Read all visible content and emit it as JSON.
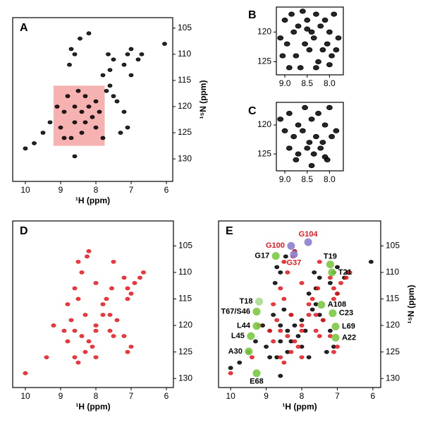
{
  "chart_data": [
    {
      "type": "scatter",
      "panel_label": "A",
      "xlabel": "¹H (ppm)",
      "ylabel": "¹⁵N (ppm)",
      "yaxis_side": "right",
      "xlim": [
        10.36,
        5.82
      ],
      "ylim": [
        103,
        134.3
      ],
      "xticks": [
        10,
        9,
        8,
        7,
        6
      ],
      "yticks": [
        105,
        110,
        115,
        120,
        125,
        130
      ],
      "highlight": {
        "xlim": [
          9.2,
          7.75
        ],
        "ylim": [
          116,
          127.5
        ],
        "color": "#f4a3a3"
      },
      "series": [
        {
          "color": "#000000",
          "x": [
            6.05,
            6.7,
            6.8,
            7.0,
            7.1,
            7.6,
            7.5,
            7.65,
            7.8,
            7.2,
            8.2,
            8.7,
            8.6,
            7.0,
            7.5,
            7.4,
            7.6,
            9.75,
            10.0,
            9.5,
            9.3,
            9.0,
            8.8,
            8.5,
            8.3,
            8.6,
            8.4,
            8.2,
            8.0,
            8.1,
            8.3,
            7.9,
            8.6,
            8.0,
            8.4,
            8.9,
            8.6,
            8.7,
            7.8,
            9.1,
            8.9,
            7.3,
            7.1,
            7.2,
            7.7,
            8.75,
            8.45
          ],
          "y": [
            108,
            110,
            111,
            109,
            110,
            113,
            111,
            110,
            114,
            112,
            106,
            109,
            110,
            114,
            118,
            119,
            116,
            127,
            128,
            125,
            123,
            124,
            118,
            117,
            118,
            120,
            121,
            120,
            119,
            122,
            123,
            121,
            123,
            124,
            125,
            126,
            129.5,
            126,
            126,
            120,
            121,
            125,
            124,
            121,
            117,
            112,
            107
          ]
        }
      ]
    },
    {
      "type": "scatter",
      "panel_label": "B",
      "yaxis_side": "left",
      "xlim": [
        9.19,
        7.69
      ],
      "ylim": [
        115.8,
        127.2
      ],
      "xticks": [
        {
          "value": 9,
          "label": "9.0"
        },
        8.5,
        {
          "value": 8,
          "label": "8.0"
        }
      ],
      "yticks": [
        120,
        125
      ],
      "series": [
        {
          "color": "#000000",
          "x": [
            9.0,
            8.85,
            8.7,
            8.6,
            8.5,
            8.4,
            8.3,
            8.2,
            8.1,
            8.0,
            7.9,
            7.8,
            9.1,
            8.95,
            8.8,
            8.55,
            8.35,
            8.15,
            8.05,
            7.85,
            9.05,
            8.75,
            8.45,
            8.25,
            7.95,
            8.9,
            8.65,
            8.3,
            8.0,
            8.5
          ],
          "y": [
            118,
            117,
            119,
            116.5,
            118,
            120,
            117,
            119,
            118,
            120,
            117,
            121,
            121,
            122,
            120,
            122,
            121,
            123,
            122,
            123,
            124,
            124,
            123,
            125,
            124,
            126,
            126,
            126,
            125.5,
            119.5
          ]
        }
      ]
    },
    {
      "type": "scatter",
      "panel_label": "C",
      "yaxis_side": "left",
      "xlim": [
        9.19,
        7.69
      ],
      "ylim": [
        116.1,
        127.9
      ],
      "xticks": [
        {
          "value": 9,
          "label": "9.0"
        },
        8.5,
        {
          "value": 8,
          "label": "8.0"
        }
      ],
      "yticks": [
        120,
        125
      ],
      "series": [
        {
          "color": "#000000",
          "x": [
            9.1,
            8.9,
            8.7,
            8.55,
            8.4,
            8.25,
            8.1,
            8.0,
            7.85,
            9.0,
            8.8,
            8.6,
            8.45,
            8.3,
            8.15,
            7.95,
            8.9,
            8.7,
            8.5,
            8.35,
            8.2,
            8.05,
            8.75,
            8.4,
            8.1
          ],
          "y": [
            119,
            118,
            120,
            117,
            119,
            118,
            120,
            117,
            121,
            121,
            122,
            121,
            123,
            122,
            123,
            122,
            124,
            125,
            124,
            125,
            124,
            126,
            126,
            127,
            125.5
          ]
        }
      ]
    },
    {
      "type": "scatter",
      "panel_label": "D",
      "xlabel": "¹H (ppm)",
      "yaxis_side": "right",
      "xlim": [
        10.36,
        5.8
      ],
      "ylim": [
        100.3,
        131.7
      ],
      "xticks": [
        10,
        9,
        8,
        7,
        6
      ],
      "yticks": [
        105,
        110,
        115,
        120,
        125,
        130
      ],
      "series": [
        {
          "color": "#e8191f",
          "x": [
            6.65,
            6.75,
            6.9,
            7.1,
            7.2,
            7.5,
            7.55,
            7.7,
            7.8,
            8.2,
            8.25,
            8.4,
            7.0,
            7.1,
            7.2,
            7.4,
            7.6,
            8.0,
            8.3,
            8.5,
            8.7,
            8.9,
            8.6,
            8.4,
            8.2,
            8.0,
            8.1,
            8.3,
            8.6,
            8.8,
            8.5,
            8.0,
            7.8,
            7.6,
            7.0,
            7.1,
            9.2,
            9.4,
            10.0,
            8.6,
            8.8,
            7.5,
            8.0,
            8.5
          ],
          "y": [
            110,
            111,
            112,
            113,
            111,
            108,
            113,
            115,
            116,
            106,
            107,
            110,
            124,
            125,
            122,
            119,
            118,
            120,
            118,
            115,
            119,
            121,
            121,
            122,
            123,
            121,
            124,
            125,
            126,
            123,
            127,
            126,
            118,
            121,
            114,
            115,
            120,
            126,
            129,
            113,
            116,
            122,
            112,
            108
          ]
        }
      ]
    },
    {
      "type": "scatter",
      "panel_label": "E",
      "xlabel": "¹H (ppm)",
      "ylabel": "¹⁵N (ppm)",
      "yaxis_side": "right",
      "xlim": [
        10.34,
        5.78
      ],
      "ylim": [
        100.3,
        131.7
      ],
      "xticks": [
        10,
        9,
        8,
        7,
        6
      ],
      "yticks": [
        105,
        110,
        115,
        120,
        125,
        130
      ],
      "series": [
        {
          "color": "#000000",
          "x": [
            6.05,
            6.7,
            6.8,
            7.0,
            7.1,
            7.6,
            7.5,
            7.65,
            7.8,
            7.2,
            8.2,
            8.7,
            8.6,
            7.0,
            7.5,
            7.4,
            7.6,
            9.75,
            10.0,
            9.5,
            9.3,
            9.0,
            8.8,
            8.5,
            8.3,
            8.6,
            8.4,
            8.2,
            8.0,
            8.1,
            8.3,
            7.9,
            8.6,
            8.0,
            8.4,
            8.9,
            8.6,
            8.7,
            7.8,
            9.1,
            8.9,
            7.3,
            7.1,
            7.2,
            7.7,
            8.75,
            8.45
          ],
          "y": [
            108,
            110,
            111,
            109,
            110,
            113,
            111,
            110,
            114,
            112,
            106,
            109,
            110,
            114,
            118,
            119,
            116,
            127,
            128,
            125,
            123,
            124,
            118,
            117,
            118,
            120,
            121,
            120,
            119,
            122,
            123,
            121,
            123,
            124,
            125,
            126,
            129.5,
            126,
            126,
            120,
            121,
            125,
            124,
            121,
            117,
            112,
            107
          ]
        },
        {
          "color": "#e8191f",
          "x": [
            6.65,
            6.75,
            6.9,
            7.1,
            7.2,
            7.5,
            7.55,
            7.7,
            7.8,
            8.2,
            8.25,
            8.4,
            7.0,
            7.1,
            7.2,
            7.4,
            7.6,
            8.0,
            8.3,
            8.5,
            8.7,
            8.9,
            8.6,
            8.4,
            8.2,
            8.0,
            8.1,
            8.3,
            8.6,
            8.8,
            8.5,
            8.0,
            7.8,
            7.6,
            7.0,
            7.1,
            9.2,
            9.4,
            10.0,
            8.6,
            8.8,
            7.5,
            8.0,
            8.5
          ],
          "y": [
            110,
            111,
            112,
            113,
            111,
            108,
            113,
            115,
            116,
            106,
            107,
            110,
            124,
            125,
            122,
            119,
            118,
            120,
            118,
            115,
            119,
            121,
            121,
            122,
            123,
            121,
            124,
            125,
            126,
            123,
            127,
            126,
            118,
            121,
            114,
            115,
            120,
            126,
            129,
            113,
            116,
            122,
            112,
            108
          ]
        }
      ],
      "annotations": [
        {
          "label": "G100",
          "x": 8.3,
          "y": 105,
          "color": "#e8191f",
          "marker_color": "#8a7fd0",
          "position": "left"
        },
        {
          "label": "G104",
          "x": 7.82,
          "y": 104.3,
          "color": "#e8191f",
          "marker_color": "#8a7fd0",
          "position": "above"
        },
        {
          "label": "G37",
          "x": 8.22,
          "y": 106.6,
          "color": "#e8191f",
          "marker_color": "#8a7fd0",
          "position": "below"
        },
        {
          "label": "G17",
          "x": 8.73,
          "y": 106.9,
          "color": "#000000",
          "marker_color": "#7ac943",
          "position": "left"
        },
        {
          "label": "T19",
          "x": 7.2,
          "y": 108.5,
          "color": "#000000",
          "marker_color": "#7ac943",
          "position": "above"
        },
        {
          "label": "T21",
          "x": 7.15,
          "y": 110,
          "color": "#000000",
          "marker_color": "#7ac943",
          "position": "right"
        },
        {
          "label": "T18",
          "x": 9.2,
          "y": 115.5,
          "color": "#000000",
          "marker_color": "#a8db8a",
          "position": "left"
        },
        {
          "label": "T67/S46",
          "x": 9.27,
          "y": 117.4,
          "color": "#000000",
          "marker_color": "#7ac943",
          "position": "left"
        },
        {
          "label": "L44",
          "x": 9.27,
          "y": 120.1,
          "color": "#000000",
          "marker_color": "#7ac943",
          "position": "left"
        },
        {
          "label": "L45",
          "x": 9.43,
          "y": 122,
          "color": "#000000",
          "marker_color": "#7ac943",
          "position": "left"
        },
        {
          "label": "A30",
          "x": 9.49,
          "y": 124.9,
          "color": "#000000",
          "marker_color": "#7ac943",
          "position": "left"
        },
        {
          "label": "E68",
          "x": 9.27,
          "y": 129,
          "color": "#000000",
          "marker_color": "#7ac943",
          "position": "below"
        },
        {
          "label": "A108",
          "x": 7.45,
          "y": 116.1,
          "color": "#000000",
          "marker_color": "#7ac943",
          "position": "right"
        },
        {
          "label": "C23",
          "x": 7.13,
          "y": 117.7,
          "color": "#000000",
          "marker_color": "#7ac943",
          "position": "right"
        },
        {
          "label": "L69",
          "x": 7.05,
          "y": 120.2,
          "color": "#000000",
          "marker_color": "#7ac943",
          "position": "right"
        },
        {
          "label": "A22",
          "x": 7.05,
          "y": 122.3,
          "color": "#000000",
          "marker_color": "#7ac943",
          "position": "right"
        }
      ]
    }
  ]
}
